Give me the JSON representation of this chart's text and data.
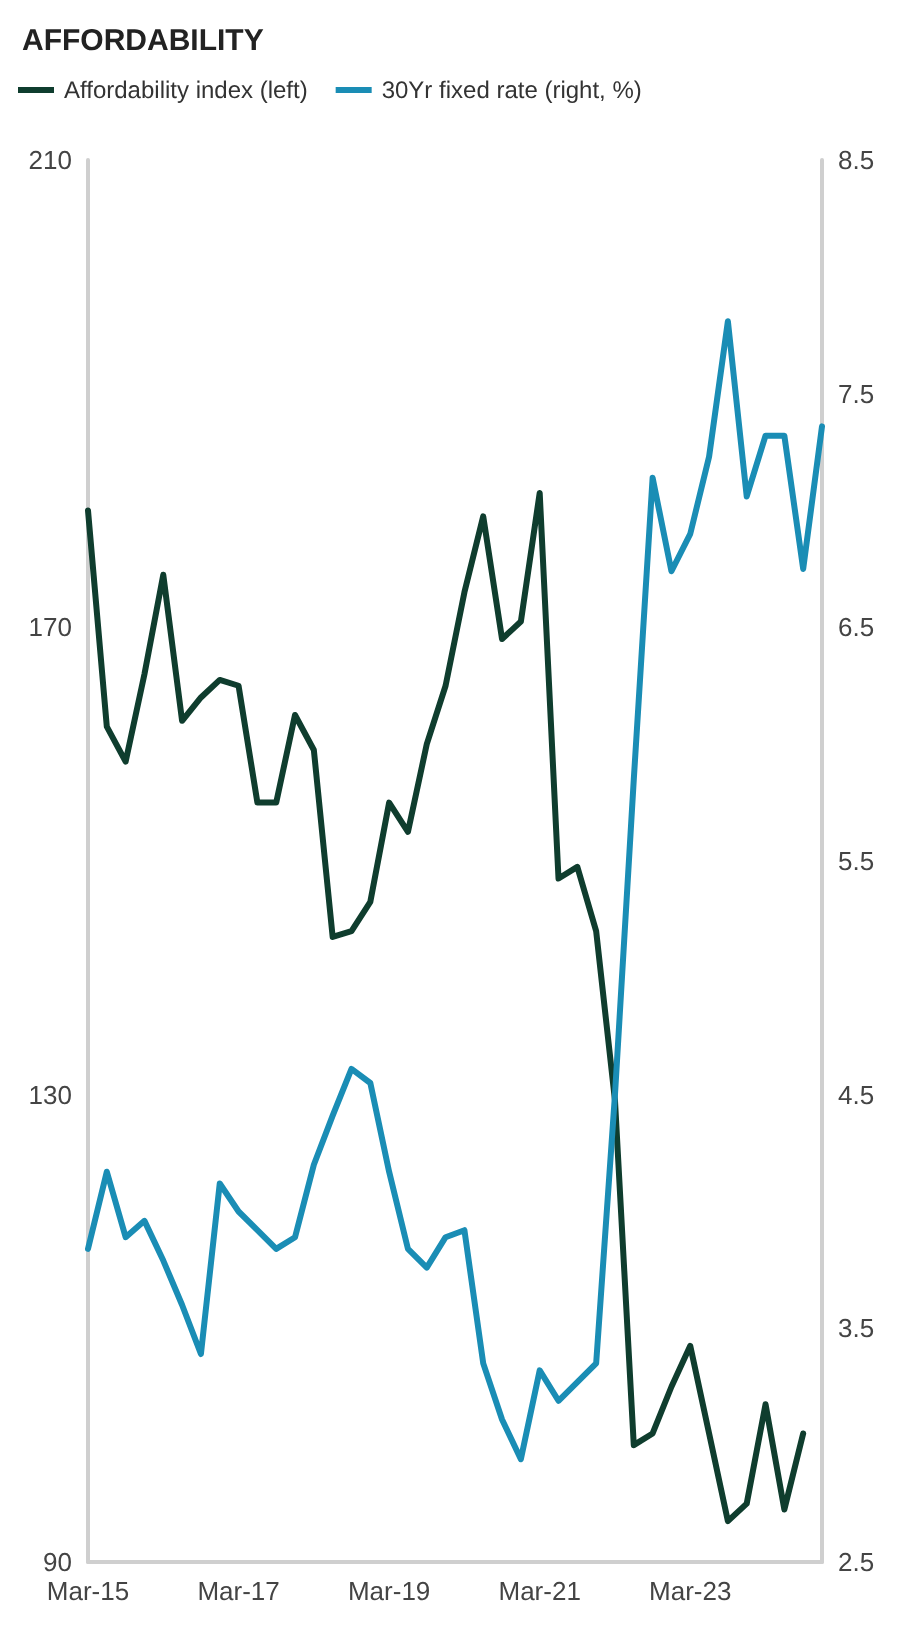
{
  "chart_data": {
    "type": "line",
    "title": "AFFORDABILITY",
    "categories": [
      "Mar-15",
      null,
      null,
      null,
      null,
      null,
      null,
      null,
      "Mar-17",
      null,
      null,
      null,
      null,
      null,
      null,
      null,
      "Mar-19",
      null,
      null,
      null,
      null,
      null,
      null,
      null,
      "Mar-21",
      null,
      null,
      null,
      null,
      null,
      null,
      null,
      "Mar-23",
      null,
      null,
      null,
      null,
      null,
      null,
      null
    ],
    "series": [
      {
        "name": "Affordability index (left)",
        "color": "#0f3d2e",
        "values": [
          180,
          161.5,
          158.5,
          166,
          174.5,
          162,
          164,
          165.5,
          165,
          155,
          155,
          162.5,
          159.5,
          143.5,
          144,
          146.5,
          155,
          152.5,
          160,
          165,
          173,
          179.5,
          169,
          170.5,
          181.5,
          148.5,
          149.5,
          144,
          129.5,
          100,
          101,
          105,
          108.5,
          101,
          93.5,
          95,
          103.5,
          94.5,
          101,
          null
        ]
      },
      {
        "name": "30Yr fixed rate (right, %)",
        "color": "#1a8db5",
        "axis": "y2",
        "values": [
          3.84,
          4.17,
          3.89,
          3.96,
          3.79,
          3.6,
          3.39,
          4.12,
          4.0,
          3.92,
          3.84,
          3.89,
          4.2,
          4.41,
          4.61,
          4.55,
          4.17,
          3.84,
          3.76,
          3.89,
          3.92,
          3.35,
          3.11,
          2.94,
          3.32,
          3.19,
          3.27,
          3.35,
          4.5,
          5.85,
          7.14,
          6.74,
          6.9,
          7.23,
          7.81,
          7.06,
          7.32,
          7.32,
          6.75,
          7.36
        ]
      }
    ],
    "ylim": [
      90,
      210
    ],
    "yticks": [
      90,
      130,
      170,
      210
    ],
    "y2lim": [
      2.5,
      8.5
    ],
    "y2ticks": [
      2.5,
      3.5,
      4.5,
      5.5,
      6.5,
      7.5,
      8.5
    ],
    "legend": "top left",
    "marker": "none",
    "line_style": "solid"
  }
}
